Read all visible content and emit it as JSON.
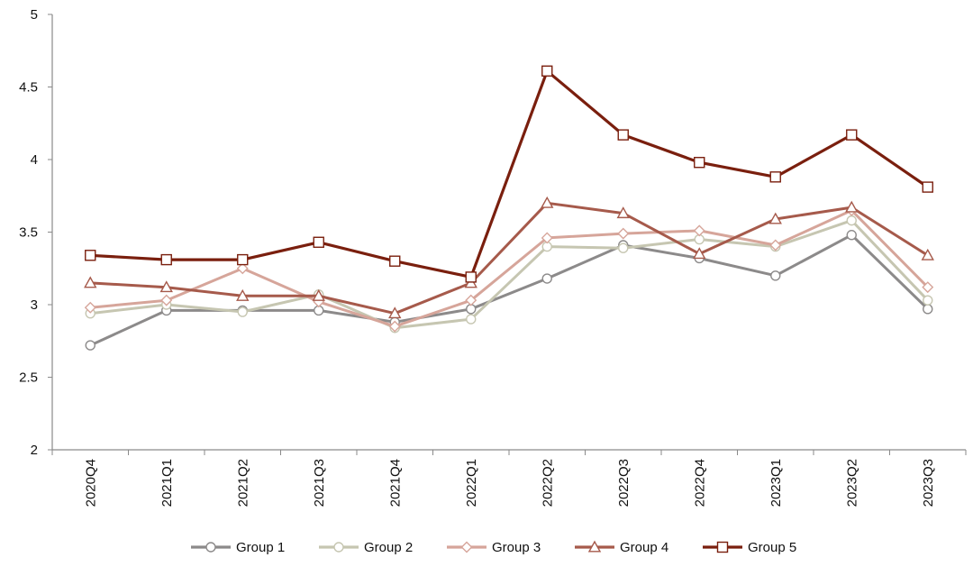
{
  "chart_data": {
    "type": "line",
    "title": "",
    "xlabel": "",
    "ylabel": "",
    "categories": [
      "2020Q4",
      "2021Q1",
      "2021Q2",
      "2021Q3",
      "2021Q4",
      "2022Q1",
      "2022Q2",
      "2022Q3",
      "2022Q4",
      "2023Q1",
      "2023Q2",
      "2023Q3"
    ],
    "ylim": [
      2,
      5
    ],
    "yticks": [
      "2",
      "2.5",
      "3",
      "3.5",
      "4",
      "4.5",
      "5"
    ],
    "grid": false,
    "legend_position": "bottom",
    "series": [
      {
        "name": "Group 1",
        "color": "#8c8a8a",
        "marker": "circle",
        "values": [
          2.72,
          2.96,
          2.96,
          2.96,
          2.88,
          2.97,
          3.18,
          3.41,
          3.32,
          3.2,
          3.48,
          2.97
        ]
      },
      {
        "name": "Group 2",
        "color": "#c6c6b1",
        "marker": "circle",
        "values": [
          2.94,
          3.0,
          2.95,
          3.07,
          2.84,
          2.9,
          3.4,
          3.39,
          3.45,
          3.4,
          3.58,
          3.03
        ]
      },
      {
        "name": "Group 3",
        "color": "#d6a59a",
        "marker": "diamond",
        "values": [
          2.98,
          3.03,
          3.25,
          3.02,
          2.85,
          3.03,
          3.46,
          3.49,
          3.51,
          3.41,
          3.65,
          3.12
        ]
      },
      {
        "name": "Group 4",
        "color": "#a65a4b",
        "marker": "triangle",
        "values": [
          3.15,
          3.12,
          3.06,
          3.06,
          2.94,
          3.15,
          3.7,
          3.63,
          3.35,
          3.59,
          3.67,
          3.34
        ]
      },
      {
        "name": "Group 5",
        "color": "#7a1f0e",
        "marker": "square",
        "values": [
          3.34,
          3.31,
          3.31,
          3.43,
          3.3,
          3.19,
          4.61,
          4.17,
          3.98,
          3.88,
          4.17,
          3.81
        ]
      }
    ]
  }
}
